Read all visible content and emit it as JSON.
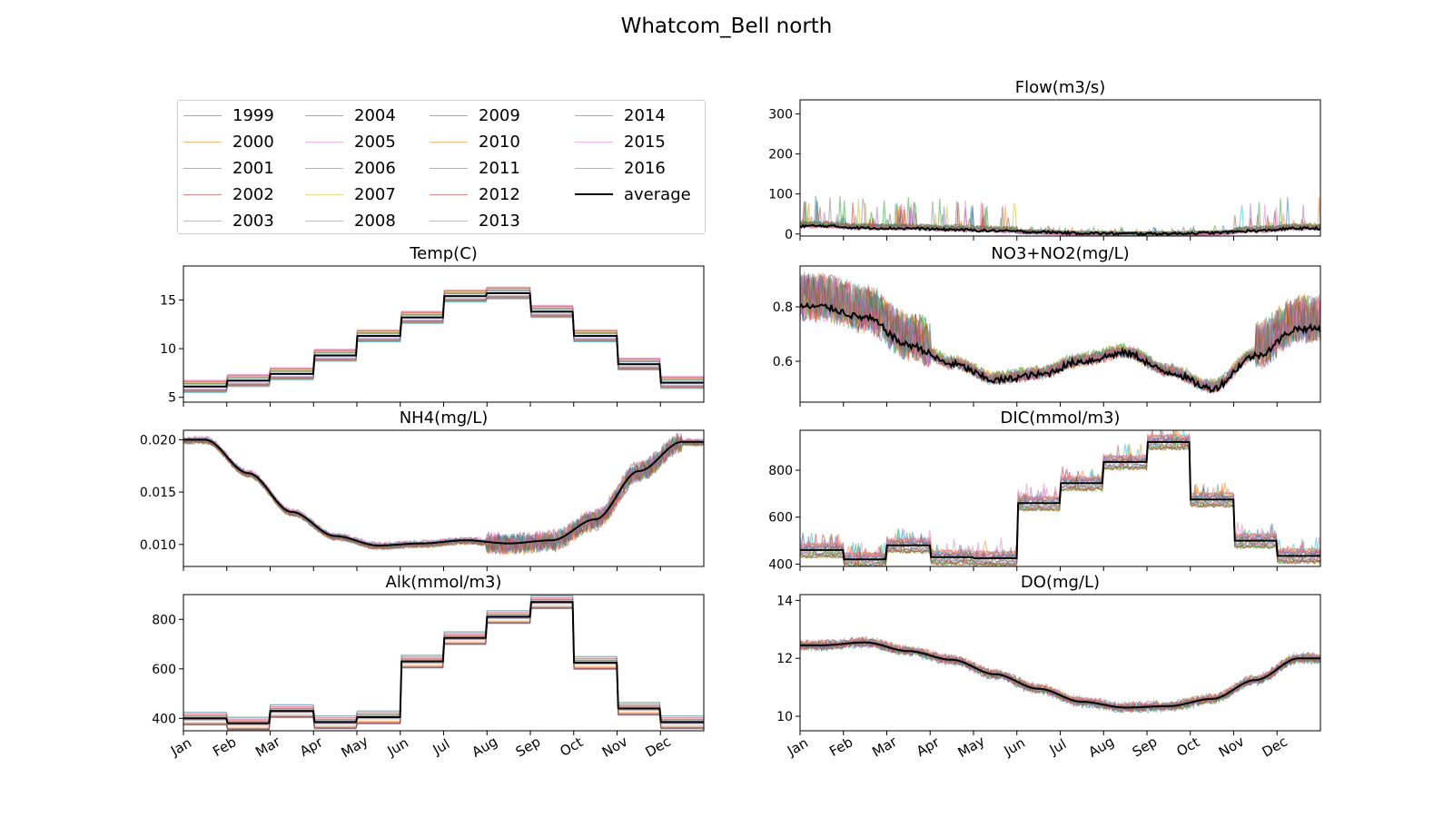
{
  "figure": {
    "title": "Whatcom_Bell north"
  },
  "legend": {
    "items": [
      {
        "label": "1999",
        "color": "#1f77b4"
      },
      {
        "label": "2000",
        "color": "#ff7f0e"
      },
      {
        "label": "2001",
        "color": "#2ca02c"
      },
      {
        "label": "2002",
        "color": "#d62728"
      },
      {
        "label": "2003",
        "color": "#9467bd"
      },
      {
        "label": "2004",
        "color": "#8c564b"
      },
      {
        "label": "2005",
        "color": "#e377c2"
      },
      {
        "label": "2006",
        "color": "#7f7f7f"
      },
      {
        "label": "2007",
        "color": "#bcbd22"
      },
      {
        "label": "2008",
        "color": "#17becf"
      },
      {
        "label": "2009",
        "color": "#1f77b4"
      },
      {
        "label": "2010",
        "color": "#ff7f0e"
      },
      {
        "label": "2011",
        "color": "#2ca02c"
      },
      {
        "label": "2012",
        "color": "#d62728"
      },
      {
        "label": "2013",
        "color": "#9467bd"
      },
      {
        "label": "2014",
        "color": "#8c564b"
      },
      {
        "label": "2015",
        "color": "#e377c2"
      },
      {
        "label": "2016",
        "color": "#7f7f7f"
      },
      {
        "label": "average",
        "color": "#000000"
      }
    ]
  },
  "chart_data": [
    {
      "type": "line",
      "title": "Flow(m3/s)",
      "xlabel": "",
      "ylabel": "",
      "x": [
        "Jan",
        "Feb",
        "Mar",
        "Apr",
        "May",
        "Jun",
        "Jul",
        "Aug",
        "Sep",
        "Oct",
        "Nov",
        "Dec"
      ],
      "yticks": [
        "0",
        "100",
        "200",
        "300"
      ],
      "ylim": [
        -5,
        335
      ],
      "grid": false,
      "xtick_labels_shown": false,
      "series": [
        {
          "name": "average",
          "values": [
            20,
            15,
            14,
            11,
            8,
            5,
            2,
            1,
            1,
            3,
            8,
            14
          ]
        }
      ]
    },
    {
      "type": "line",
      "title": "NO3+NO2(mg/L)",
      "xlabel": "",
      "ylabel": "",
      "x": [
        "Jan",
        "Feb",
        "Mar",
        "Apr",
        "May",
        "Jun",
        "Jul",
        "Aug",
        "Sep",
        "Oct",
        "Nov",
        "Dec"
      ],
      "yticks": [
        "0.6",
        "0.8"
      ],
      "ylim": [
        0.45,
        0.95
      ],
      "grid": false,
      "xtick_labels_shown": false,
      "series": [
        {
          "name": "average",
          "values": [
            0.8,
            0.76,
            0.66,
            0.59,
            0.53,
            0.55,
            0.6,
            0.63,
            0.56,
            0.5,
            0.62,
            0.72
          ]
        }
      ]
    },
    {
      "type": "line",
      "title": "Temp(C)",
      "xlabel": "",
      "ylabel": "",
      "x": [
        "Jan",
        "Feb",
        "Mar",
        "Apr",
        "May",
        "Jun",
        "Jul",
        "Aug",
        "Sep",
        "Oct",
        "Nov",
        "Dec"
      ],
      "yticks": [
        "5",
        "10",
        "15"
      ],
      "ylim": [
        4.5,
        18.5
      ],
      "grid": false,
      "xtick_labels_shown": false,
      "series": [
        {
          "name": "average",
          "values": [
            6.1,
            6.7,
            7.4,
            9.3,
            11.3,
            13.2,
            15.4,
            15.7,
            13.8,
            11.3,
            8.4,
            6.5
          ]
        }
      ]
    },
    {
      "type": "line",
      "title": "NH4(mg/L)",
      "xlabel": "",
      "ylabel": "",
      "x": [
        "Jan",
        "Feb",
        "Mar",
        "Apr",
        "May",
        "Jun",
        "Jul",
        "Aug",
        "Sep",
        "Oct",
        "Nov",
        "Dec"
      ],
      "yticks": [
        "0.010",
        "0.015",
        "0.020"
      ],
      "ylim": [
        0.0079,
        0.0209
      ],
      "grid": false,
      "xtick_labels_shown": false,
      "series": [
        {
          "name": "average",
          "values": [
            0.02,
            0.0168,
            0.0131,
            0.0108,
            0.0099,
            0.0101,
            0.0104,
            0.0101,
            0.0104,
            0.0124,
            0.017,
            0.0198
          ]
        }
      ]
    },
    {
      "type": "line",
      "title": "DIC(mmol/m3)",
      "xlabel": "",
      "ylabel": "",
      "x": [
        "Jan",
        "Feb",
        "Mar",
        "Apr",
        "May",
        "Jun",
        "Jul",
        "Aug",
        "Sep",
        "Oct",
        "Nov",
        "Dec"
      ],
      "yticks": [
        "400",
        "600",
        "800"
      ],
      "ylim": [
        390,
        970
      ],
      "grid": false,
      "xtick_labels_shown": false,
      "series": [
        {
          "name": "average",
          "values": [
            460,
            420,
            480,
            430,
            425,
            660,
            745,
            835,
            920,
            675,
            500,
            435
          ]
        }
      ]
    },
    {
      "type": "line",
      "title": "Alk(mmol/m3)",
      "xlabel": "",
      "ylabel": "",
      "x": [
        "Jan",
        "Feb",
        "Mar",
        "Apr",
        "May",
        "Jun",
        "Jul",
        "Aug",
        "Sep",
        "Oct",
        "Nov",
        "Dec"
      ],
      "yticks": [
        "400",
        "600",
        "800"
      ],
      "ylim": [
        350,
        900
      ],
      "grid": false,
      "xtick_labels_shown": true,
      "series": [
        {
          "name": "average",
          "values": [
            400,
            380,
            430,
            385,
            405,
            630,
            725,
            810,
            870,
            625,
            440,
            385
          ]
        }
      ]
    },
    {
      "type": "line",
      "title": "DO(mg/L)",
      "xlabel": "",
      "ylabel": "",
      "x": [
        "Jan",
        "Feb",
        "Mar",
        "Apr",
        "May",
        "Jun",
        "Jul",
        "Aug",
        "Sep",
        "Oct",
        "Nov",
        "Dec"
      ],
      "yticks": [
        "10",
        "12",
        "14"
      ],
      "ylim": [
        9.5,
        14.2
      ],
      "grid": false,
      "xtick_labels_shown": true,
      "series": [
        {
          "name": "average",
          "values": [
            12.45,
            12.55,
            12.25,
            11.95,
            11.45,
            10.95,
            10.5,
            10.3,
            10.35,
            10.6,
            11.25,
            12.0
          ]
        }
      ]
    }
  ]
}
